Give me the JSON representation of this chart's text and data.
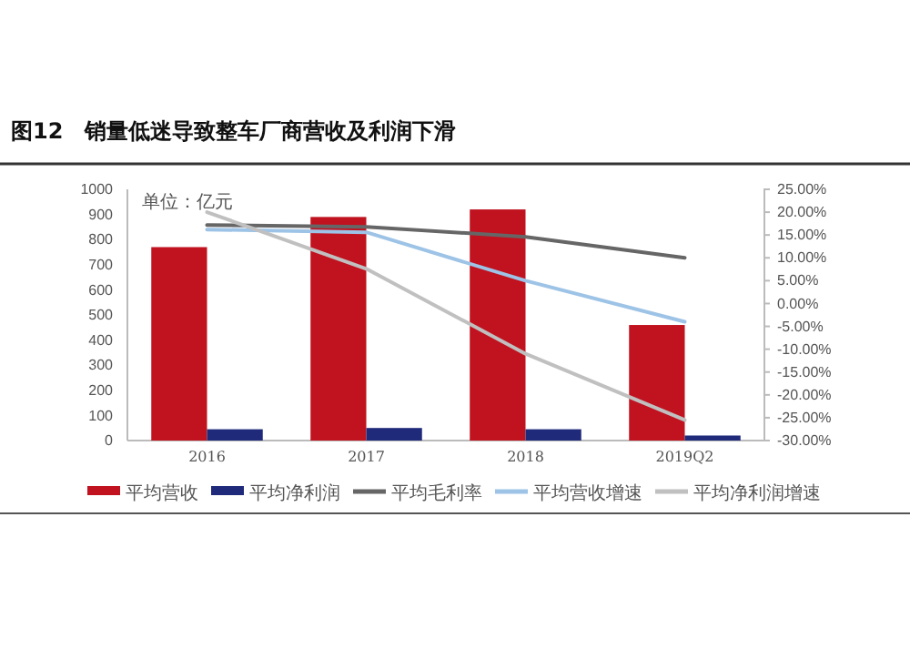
{
  "chart_data": {
    "type": "bar",
    "title": "图12　销量低迷导致整车厂商营收及利润下滑",
    "annotations": [
      "单位：亿元"
    ],
    "categories": [
      "2016",
      "2017",
      "2018",
      "2019Q2"
    ],
    "series": [
      {
        "name": "平均营收",
        "color": "#c0121f",
        "values": [
          770,
          890,
          920,
          460
        ]
      },
      {
        "name": "平均净利润",
        "color": "#1f2a7a",
        "values": [
          45,
          50,
          45,
          20
        ]
      },
      {
        "name": "平均毛利率",
        "type": "line",
        "axis": "y2",
        "color": "#666666",
        "values": [
          17.2,
          16.8,
          14.6,
          10
        ]
      },
      {
        "name": "平均营收增速",
        "type": "line",
        "axis": "y2",
        "color": "#9dc3e6",
        "values": [
          16.2,
          15.6,
          5,
          -4
        ]
      },
      {
        "name": "平均净利润增速",
        "type": "line",
        "axis": "y2",
        "color": "#c0c0c0",
        "values": [
          20,
          7.6,
          -11,
          -25.5
        ]
      }
    ],
    "ylim": [
      0,
      1000
    ],
    "yticks": [
      0,
      100,
      200,
      300,
      400,
      500,
      600,
      700,
      800,
      900,
      1000
    ],
    "y2lim": [
      -30,
      25
    ],
    "y2ticks": [
      {
        "value": -30,
        "label": "-30.00%"
      },
      {
        "value": -25,
        "label": "-25.00%"
      },
      {
        "value": -20,
        "label": "-20.00%"
      },
      {
        "value": -15,
        "label": "-15.00%"
      },
      {
        "value": -10,
        "label": "-10.00%"
      },
      {
        "value": -5,
        "label": "-5.00%"
      },
      {
        "value": 0,
        "label": "0.00%"
      },
      {
        "value": 5,
        "label": "5.00%"
      },
      {
        "value": 10,
        "label": "10.00%"
      },
      {
        "value": 15,
        "label": "15.00%"
      },
      {
        "value": 20,
        "label": "20.00%"
      },
      {
        "value": 25,
        "label": "25.00%"
      }
    ],
    "grid": false,
    "legend": "bottom"
  }
}
